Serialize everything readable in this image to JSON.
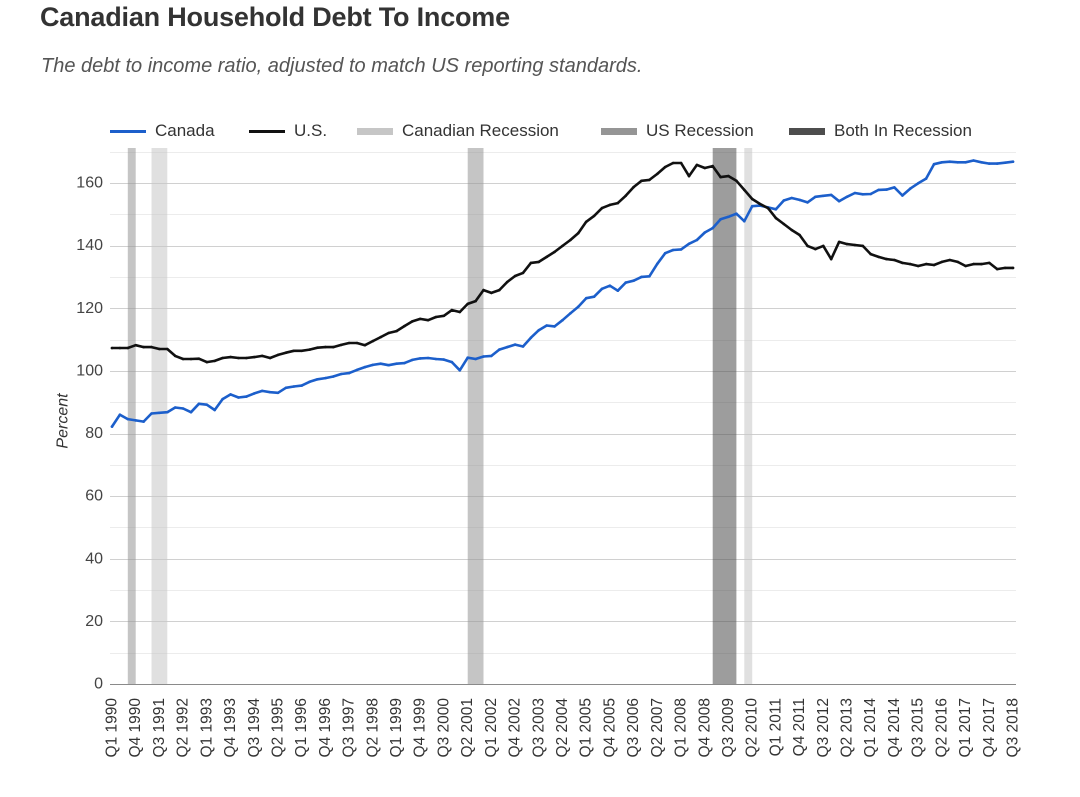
{
  "chart_data": {
    "type": "line",
    "title": "Canadian Household Debt To Income",
    "subtitle": "The debt to income ratio, adjusted to match US reporting standards.",
    "xlabel": "",
    "ylabel": "Percent",
    "ylim": [
      0,
      170
    ],
    "yticks": [
      0,
      20,
      40,
      60,
      80,
      100,
      120,
      140,
      160
    ],
    "grid": true,
    "x_start": 1990,
    "x_step": 0.25,
    "xlim": [
      1990,
      2018.5
    ],
    "xtick_step": 3,
    "xticks": [
      "Q1 1990",
      "Q4 1990",
      "Q3 1991",
      "Q2 1992",
      "Q1 1993",
      "Q4 1993",
      "Q3 1994",
      "Q2 1995",
      "Q1 1996",
      "Q4 1996",
      "Q3 1997",
      "Q2 1998",
      "Q1 1999",
      "Q4 1999",
      "Q3 2000",
      "Q2 2001",
      "Q1 2002",
      "Q4 2002",
      "Q3 2003",
      "Q2 2004",
      "Q1 2005",
      "Q4 2005",
      "Q3 2006",
      "Q2 2007",
      "Q1 2008",
      "Q4 2008",
      "Q3 2009",
      "Q2 2010",
      "Q1 2011",
      "Q4 2011",
      "Q3 2012",
      "Q2 2013",
      "Q1 2014",
      "Q4 2014",
      "Q3 2015",
      "Q2 2016",
      "Q1 2017",
      "Q4 2017",
      "Q3 2018"
    ],
    "series": [
      {
        "name": "Canada",
        "color": "#1c5fcb",
        "values": [
          82.2,
          86.0,
          84.6,
          84.2,
          83.8,
          86.4,
          86.6,
          86.8,
          88.3,
          88.0,
          86.8,
          89.5,
          89.2,
          87.5,
          91.0,
          92.5,
          91.5,
          91.8,
          92.8,
          93.6,
          93.2,
          93.0,
          94.6,
          95.0,
          95.3,
          96.5,
          97.3,
          97.7,
          98.2,
          99.0,
          99.3,
          100.3,
          101.2,
          101.9,
          102.3,
          101.8,
          102.3,
          102.5,
          103.5,
          104.0,
          104.1,
          103.8,
          103.6,
          102.8,
          100.2,
          104.2,
          103.8,
          104.6,
          104.8,
          106.8,
          107.6,
          108.4,
          107.8,
          110.6,
          113.0,
          114.5,
          114.2,
          116.2,
          118.4,
          120.5,
          123.2,
          123.7,
          126.2,
          127.2,
          125.6,
          128.2,
          128.8,
          130.0,
          130.2,
          134.2,
          137.6,
          138.6,
          138.8,
          140.6,
          141.8,
          144.2,
          145.6,
          148.4,
          149.2,
          150.2,
          147.8,
          152.6,
          152.8,
          152.2,
          151.6,
          154.4,
          155.2,
          154.6,
          153.8,
          155.6,
          155.9,
          156.2,
          154.2,
          155.6,
          156.8,
          156.4,
          156.5,
          157.8,
          157.9,
          158.6,
          156.0,
          158.2,
          159.9,
          161.4,
          166.0,
          166.6,
          166.8,
          166.6,
          166.6,
          167.2,
          166.6,
          166.2,
          166.2,
          166.5,
          166.8
        ]
      },
      {
        "name": "U.S.",
        "color": "#111111",
        "values": [
          107.3,
          107.3,
          107.3,
          108.2,
          107.6,
          107.6,
          107.0,
          107.0,
          104.8,
          103.8,
          103.8,
          103.9,
          102.8,
          103.2,
          104.1,
          104.4,
          104.1,
          104.1,
          104.4,
          104.8,
          104.1,
          105.1,
          105.8,
          106.4,
          106.4,
          106.8,
          107.4,
          107.6,
          107.6,
          108.3,
          108.9,
          108.9,
          108.2,
          109.5,
          110.8,
          112.1,
          112.7,
          114.3,
          115.8,
          116.6,
          116.2,
          117.2,
          117.6,
          119.4,
          118.8,
          121.4,
          122.3,
          125.8,
          124.9,
          125.8,
          128.4,
          130.3,
          131.3,
          134.5,
          134.8,
          136.4,
          138.0,
          139.9,
          141.8,
          144.0,
          147.6,
          149.5,
          152.0,
          153.0,
          153.6,
          155.9,
          158.7,
          160.7,
          161.0,
          162.9,
          165.1,
          166.4,
          166.4,
          162.2,
          165.8,
          164.8,
          165.4,
          161.9,
          162.2,
          160.7,
          157.8,
          154.9,
          153.3,
          152.0,
          148.8,
          146.9,
          145.0,
          143.4,
          139.9,
          138.9,
          139.9,
          135.7,
          141.2,
          140.5,
          140.2,
          139.9,
          137.3,
          136.4,
          135.7,
          135.4,
          134.5,
          134.1,
          133.5,
          134.1,
          133.8,
          134.8,
          135.4,
          134.8,
          133.5,
          134.1,
          134.1,
          134.5,
          132.5,
          132.9,
          132.9
        ]
      }
    ],
    "recessions": [
      {
        "name": "Canadian Recession",
        "color": "#c6c6c6",
        "periods": [
          [
            1991.25,
            1991.75
          ],
          [
            2010.0,
            2010.25
          ]
        ]
      },
      {
        "name": "US Recession",
        "color": "#959595",
        "periods": [
          [
            1990.5,
            1990.75
          ],
          [
            2001.25,
            2001.75
          ]
        ]
      },
      {
        "name": "Both In Recession",
        "color": "#4d4d4d",
        "periods": [
          [
            2009.0,
            2009.75
          ]
        ]
      }
    ]
  }
}
